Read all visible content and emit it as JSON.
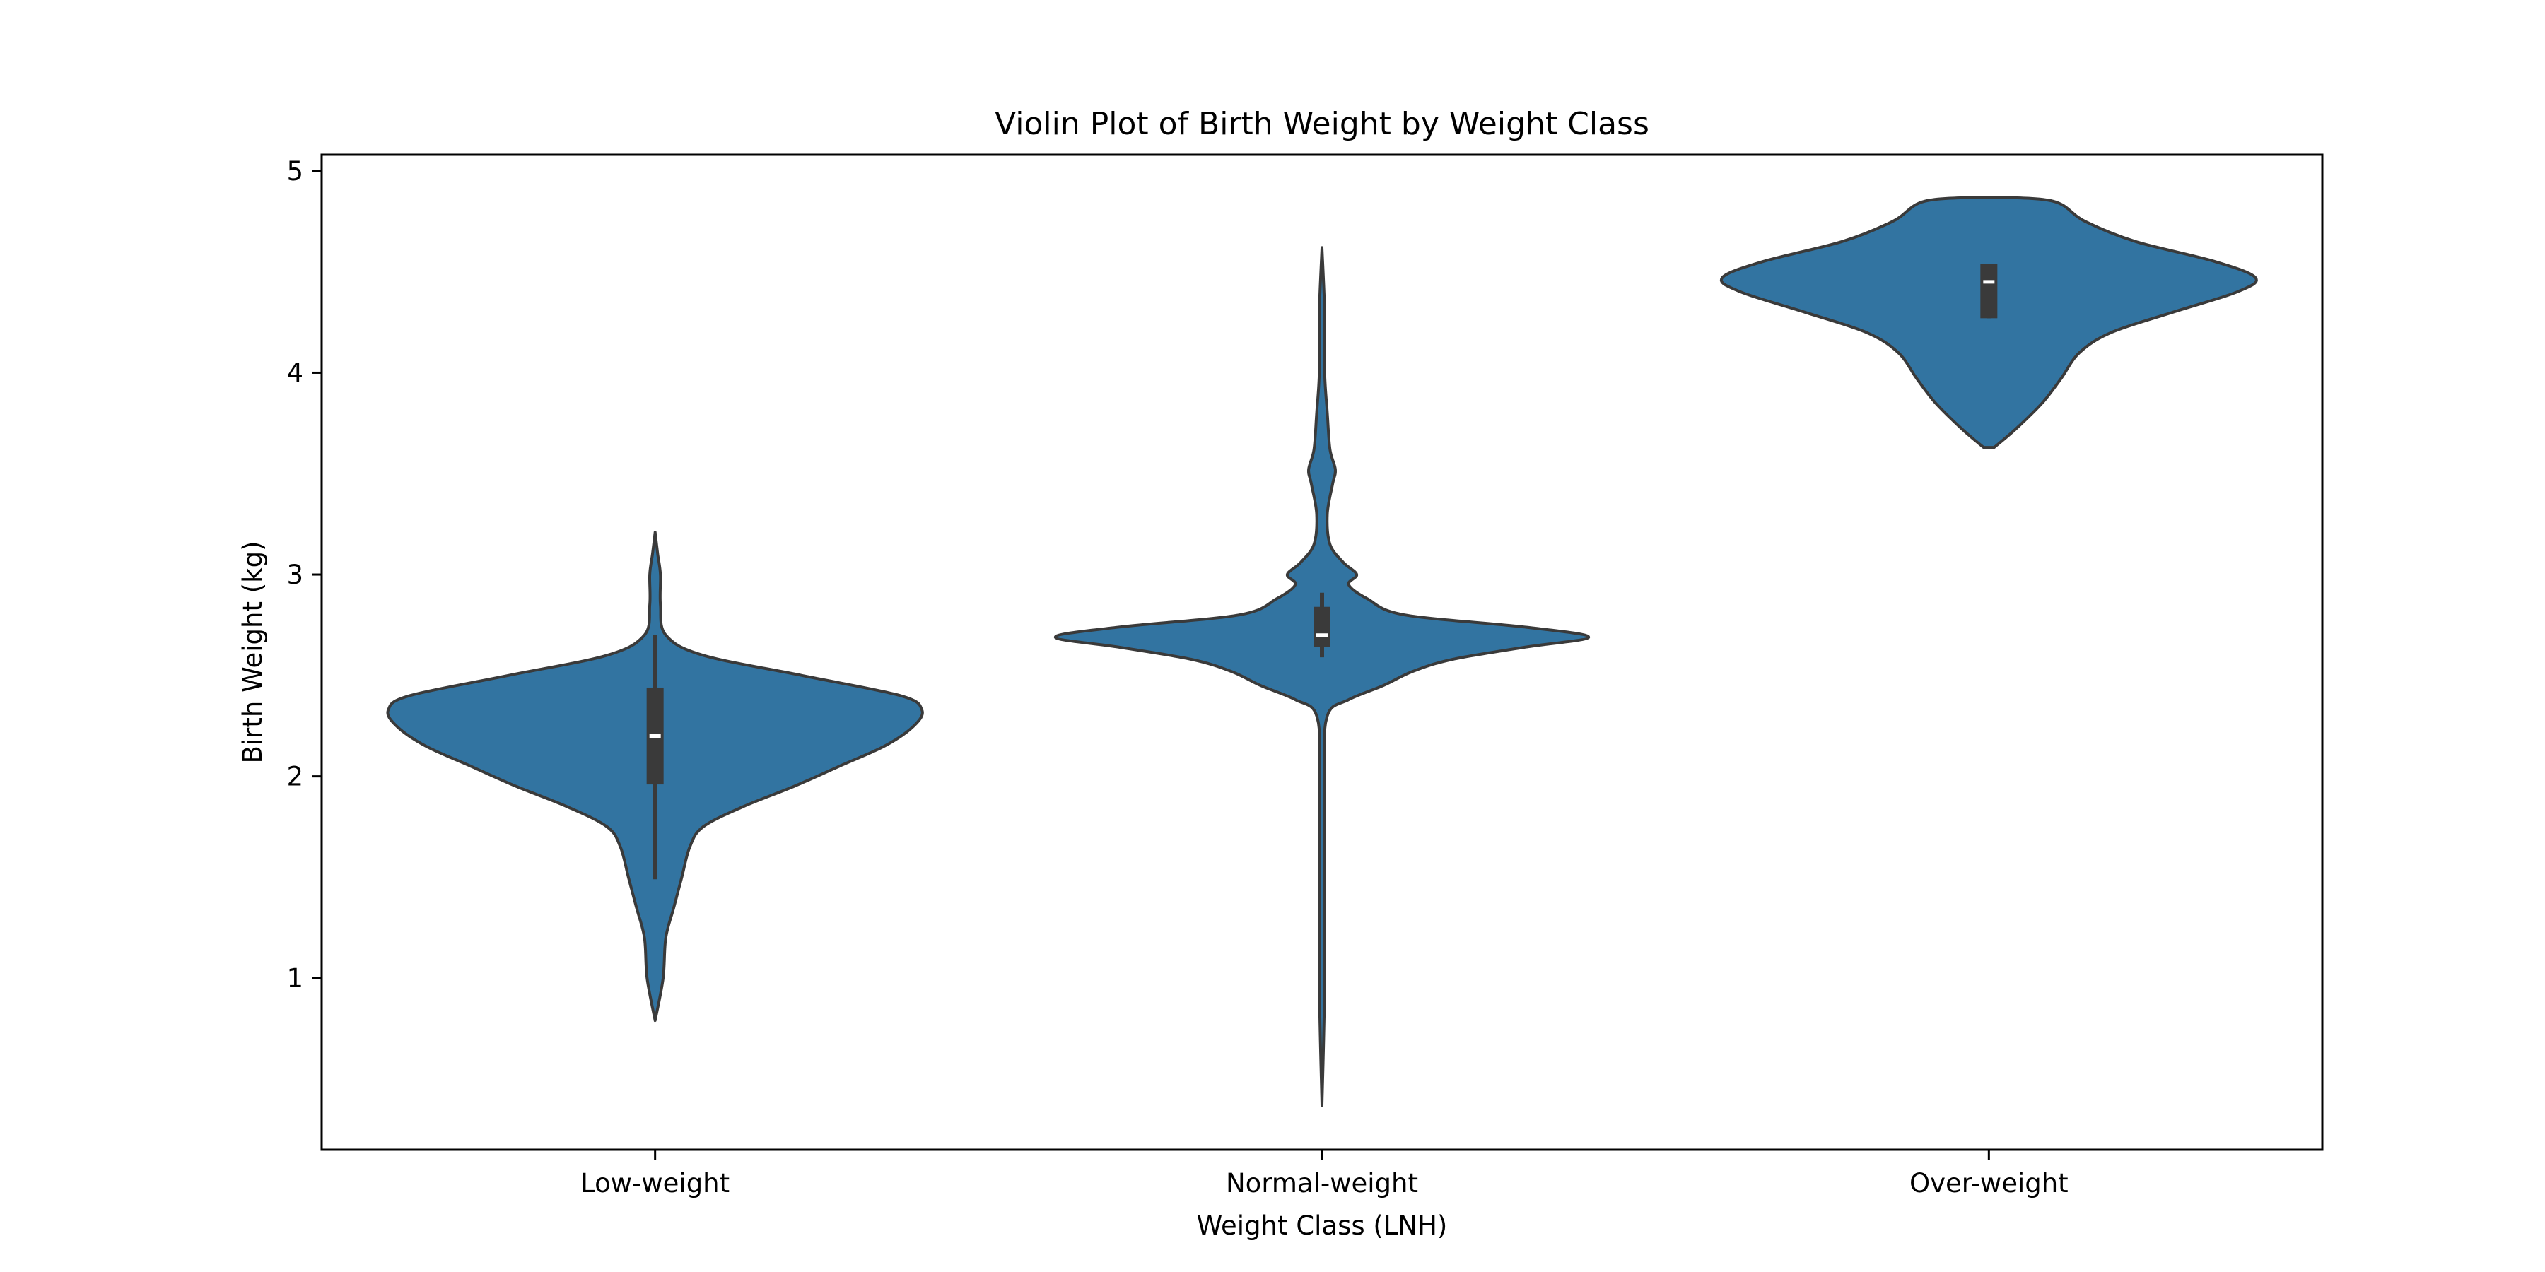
{
  "chart_data": {
    "type": "violin",
    "title": "Violin Plot of Birth Weight by Weight Class",
    "xlabel": "Weight Class (LNH)",
    "ylabel": "Birth Weight (kg)",
    "categories": [
      "Low-weight",
      "Normal-weight",
      "Over-weight"
    ],
    "yticks": [
      1,
      2,
      3,
      4,
      5
    ],
    "ylim": [
      0.15,
      5.08
    ],
    "grid": false,
    "colors": {
      "violin": "#3274a1",
      "edge": "#3a3a3a",
      "box": "#3a3a3a",
      "median": "#ffffff"
    },
    "violins": [
      {
        "category": "Low-weight",
        "min": 0.79,
        "max": 3.21,
        "q1": 1.96,
        "median": 2.2,
        "q3": 2.44,
        "whisker_low": 1.49,
        "whisker_high": 2.7,
        "density": [
          [
            0.79,
            0.0
          ],
          [
            1.0,
            0.03
          ],
          [
            1.2,
            0.04
          ],
          [
            1.35,
            0.07
          ],
          [
            1.5,
            0.1
          ],
          [
            1.65,
            0.13
          ],
          [
            1.75,
            0.18
          ],
          [
            1.85,
            0.33
          ],
          [
            1.95,
            0.52
          ],
          [
            2.05,
            0.69
          ],
          [
            2.15,
            0.86
          ],
          [
            2.25,
            0.97
          ],
          [
            2.33,
            1.0
          ],
          [
            2.4,
            0.92
          ],
          [
            2.5,
            0.55
          ],
          [
            2.6,
            0.18
          ],
          [
            2.7,
            0.04
          ],
          [
            2.85,
            0.02
          ],
          [
            3.0,
            0.02
          ],
          [
            3.1,
            0.01
          ],
          [
            3.21,
            0.0
          ]
        ]
      },
      {
        "category": "Normal-weight",
        "min": 0.37,
        "max": 4.62,
        "q1": 2.64,
        "median": 2.7,
        "q3": 2.84,
        "whisker_low": 2.59,
        "whisker_high": 2.91,
        "density": [
          [
            0.37,
            0.0
          ],
          [
            1.0,
            0.01
          ],
          [
            2.0,
            0.01
          ],
          [
            2.3,
            0.02
          ],
          [
            2.38,
            0.1
          ],
          [
            2.45,
            0.23
          ],
          [
            2.52,
            0.34
          ],
          [
            2.58,
            0.49
          ],
          [
            2.64,
            0.76
          ],
          [
            2.69,
            1.0
          ],
          [
            2.74,
            0.76
          ],
          [
            2.8,
            0.31
          ],
          [
            2.88,
            0.17
          ],
          [
            2.95,
            0.1
          ],
          [
            3.0,
            0.13
          ],
          [
            3.06,
            0.08
          ],
          [
            3.15,
            0.03
          ],
          [
            3.3,
            0.02
          ],
          [
            3.45,
            0.04
          ],
          [
            3.52,
            0.05
          ],
          [
            3.62,
            0.03
          ],
          [
            3.8,
            0.02
          ],
          [
            4.0,
            0.01
          ],
          [
            4.3,
            0.01
          ],
          [
            4.62,
            0.0
          ]
        ]
      },
      {
        "category": "Over-weight",
        "min": 3.63,
        "max": 4.87,
        "q1": 4.27,
        "median": 4.45,
        "q3": 4.54,
        "whisker_low": 4.27,
        "whisker_high": 4.54,
        "density": [
          [
            3.63,
            0.02
          ],
          [
            3.72,
            0.1
          ],
          [
            3.85,
            0.2
          ],
          [
            3.97,
            0.27
          ],
          [
            4.1,
            0.34
          ],
          [
            4.2,
            0.46
          ],
          [
            4.3,
            0.69
          ],
          [
            4.4,
            0.93
          ],
          [
            4.47,
            1.0
          ],
          [
            4.55,
            0.85
          ],
          [
            4.65,
            0.55
          ],
          [
            4.75,
            0.36
          ],
          [
            4.85,
            0.24
          ],
          [
            4.87,
            0.0
          ]
        ]
      }
    ]
  }
}
